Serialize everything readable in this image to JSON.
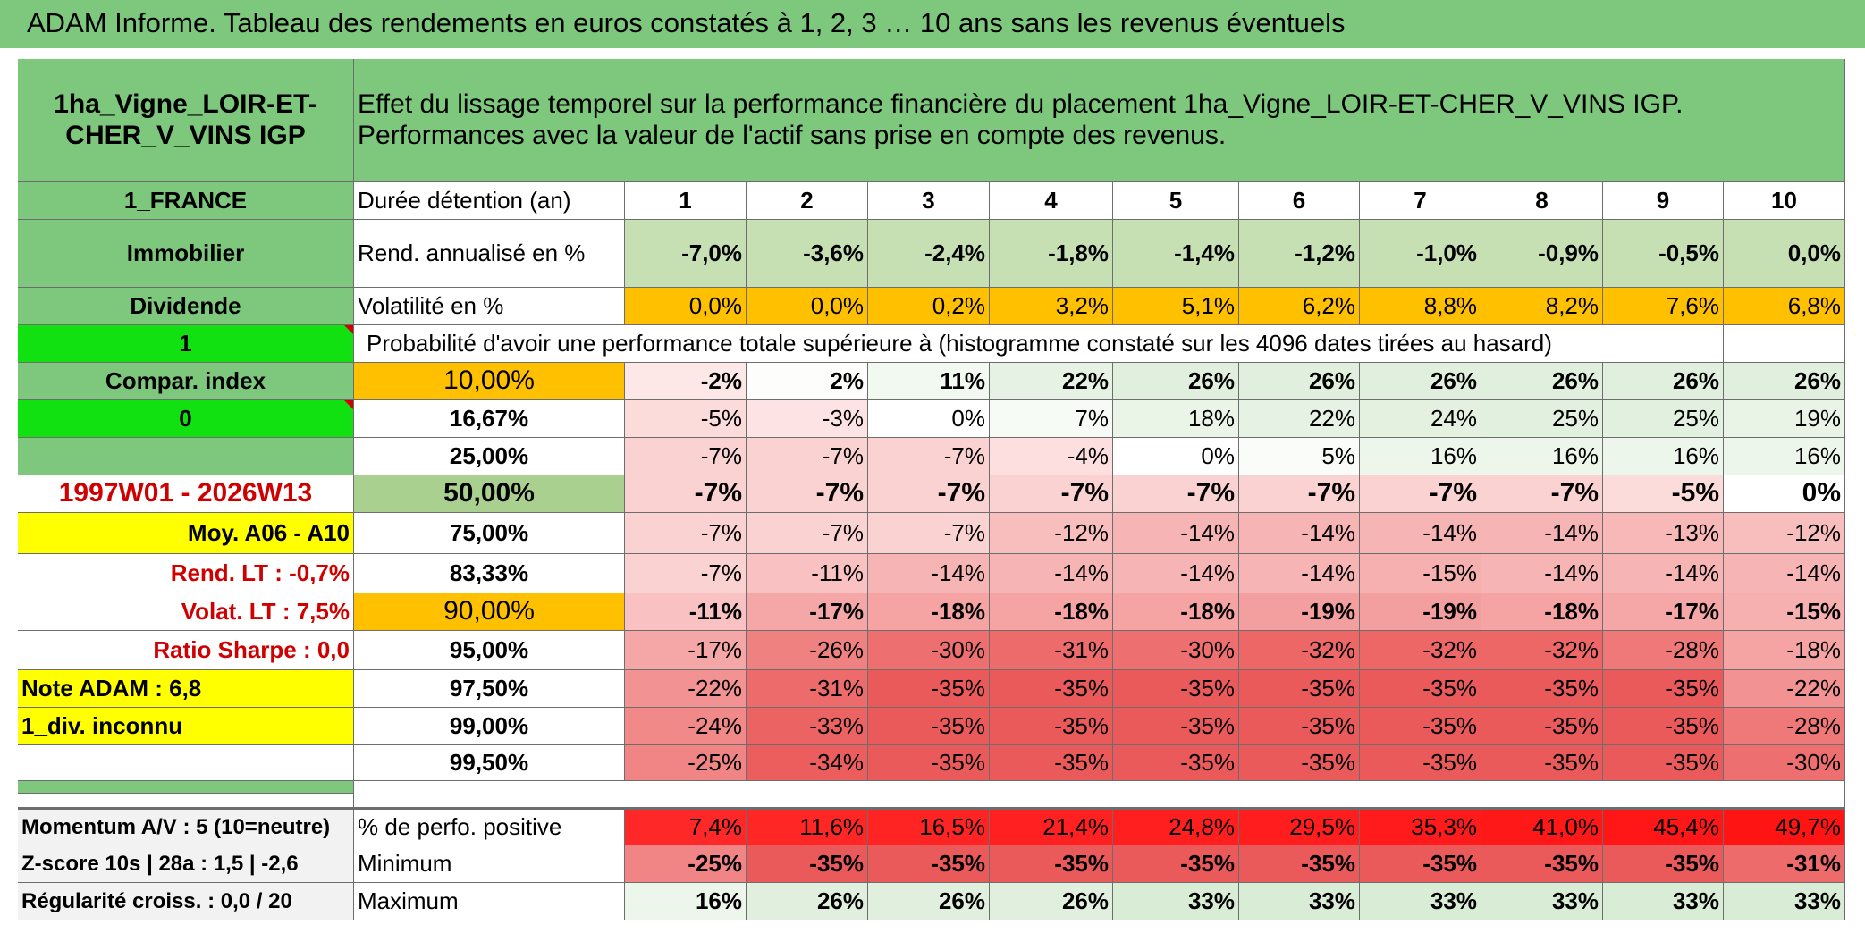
{
  "title": "ADAM Informe. Tableau des rendements en euros constatés à 1, 2, 3 … 10 ans sans les revenus éventuels",
  "left": {
    "name": "1ha_Vigne_LOIR-ET-CHER_V_VINS IGP",
    "country": "1_FRANCE",
    "category": "Immobilier",
    "dividend_label": "Dividende",
    "dividend_value": "1",
    "compar_label": "Compar. index",
    "compar_value": "0",
    "period": "1997W01 - 2026W13",
    "moy": "Moy. A06 - A10",
    "rend_lt": "Rend. LT :   -0,7%",
    "volat_lt": "Volat. LT :   7,5%",
    "sharpe": "Ratio Sharpe :    0,0",
    "note": "Note ADAM : 6,8",
    "div": "1_div. inconnu",
    "momentum": "Momentum A/V : 5 (10=neutre)",
    "zscore": "Z-score 10s | 28a : 1,5 | -2,6",
    "regularite": "Régularité croiss. : 0,0 / 20"
  },
  "header_text": "Effet du lissage temporel sur la performance financière du placement 1ha_Vigne_LOIR-ET-CHER_V_VINS IGP. Performances avec la valeur de l'actif sans prise en compte des revenus.",
  "duration_label": "Durée détention (an)",
  "years": [
    "1",
    "2",
    "3",
    "4",
    "5",
    "6",
    "7",
    "8",
    "9",
    "10"
  ],
  "rend_label": "Rend. annualisé en %",
  "rend": [
    "-7,0%",
    "-3,6%",
    "-2,4%",
    "-1,8%",
    "-1,4%",
    "-1,2%",
    "-1,0%",
    "-0,9%",
    "-0,5%",
    "0,0%"
  ],
  "vol_label": "Volatilité en %",
  "vol": [
    "0,0%",
    "0,0%",
    "0,2%",
    "3,2%",
    "5,1%",
    "6,2%",
    "8,8%",
    "8,2%",
    "7,6%",
    "6,8%"
  ],
  "proba_text": "Probabilité d'avoir une performance totale supérieure à (histogramme constaté sur les 4096 dates tirées au hasard)",
  "percentiles": [
    {
      "p": "10,00%",
      "vals": [
        "-2%",
        "2%",
        "11%",
        "22%",
        "26%",
        "26%",
        "26%",
        "26%",
        "26%",
        "26%"
      ]
    },
    {
      "p": "16,67%",
      "vals": [
        "-5%",
        "-3%",
        "0%",
        "7%",
        "18%",
        "22%",
        "24%",
        "25%",
        "25%",
        "19%"
      ]
    },
    {
      "p": "25,00%",
      "vals": [
        "-7%",
        "-7%",
        "-7%",
        "-4%",
        "0%",
        "5%",
        "16%",
        "16%",
        "16%",
        "16%"
      ]
    },
    {
      "p": "50,00%",
      "vals": [
        "-7%",
        "-7%",
        "-7%",
        "-7%",
        "-7%",
        "-7%",
        "-7%",
        "-7%",
        "-5%",
        "0%"
      ]
    },
    {
      "p": "75,00%",
      "vals": [
        "-7%",
        "-7%",
        "-7%",
        "-12%",
        "-14%",
        "-14%",
        "-14%",
        "-14%",
        "-13%",
        "-12%"
      ]
    },
    {
      "p": "83,33%",
      "vals": [
        "-7%",
        "-11%",
        "-14%",
        "-14%",
        "-14%",
        "-14%",
        "-15%",
        "-14%",
        "-14%",
        "-14%"
      ]
    },
    {
      "p": "90,00%",
      "vals": [
        "-11%",
        "-17%",
        "-18%",
        "-18%",
        "-18%",
        "-19%",
        "-19%",
        "-18%",
        "-17%",
        "-15%"
      ]
    },
    {
      "p": "95,00%",
      "vals": [
        "-17%",
        "-26%",
        "-30%",
        "-31%",
        "-30%",
        "-32%",
        "-32%",
        "-32%",
        "-28%",
        "-18%"
      ]
    },
    {
      "p": "97,50%",
      "vals": [
        "-22%",
        "-31%",
        "-35%",
        "-35%",
        "-35%",
        "-35%",
        "-35%",
        "-35%",
        "-35%",
        "-22%"
      ]
    },
    {
      "p": "99,00%",
      "vals": [
        "-24%",
        "-33%",
        "-35%",
        "-35%",
        "-35%",
        "-35%",
        "-35%",
        "-35%",
        "-35%",
        "-28%"
      ]
    },
    {
      "p": "99,50%",
      "vals": [
        "-25%",
        "-34%",
        "-35%",
        "-35%",
        "-35%",
        "-35%",
        "-35%",
        "-35%",
        "-35%",
        "-30%"
      ]
    }
  ],
  "pos_label": "% de perfo. positive",
  "pos": [
    "7,4%",
    "11,6%",
    "16,5%",
    "21,4%",
    "24,8%",
    "29,5%",
    "35,3%",
    "41,0%",
    "45,4%",
    "49,7%"
  ],
  "min_label": "Minimum",
  "min": [
    "-25%",
    "-35%",
    "-35%",
    "-35%",
    "-35%",
    "-35%",
    "-35%",
    "-35%",
    "-35%",
    "-31%"
  ],
  "max_label": "Maximum",
  "max": [
    "16%",
    "26%",
    "26%",
    "26%",
    "33%",
    "33%",
    "33%",
    "33%",
    "33%",
    "33%"
  ],
  "colors": {
    "title_green": "#7ec87e",
    "orange": "#ffc000",
    "yellow": "#ffff00",
    "bright_green": "#11e011",
    "label_red": "#d00000"
  }
}
